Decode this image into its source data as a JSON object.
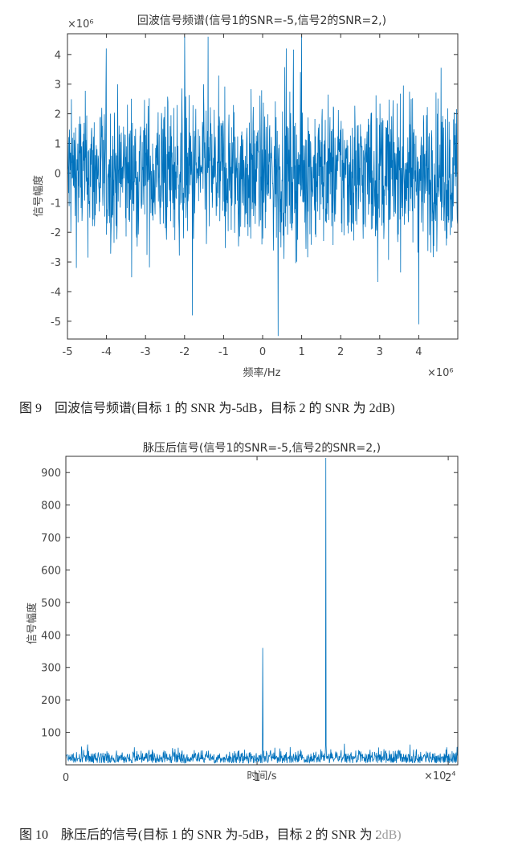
{
  "chart_data": [
    {
      "type": "line",
      "title": "回波信号频谱(信号1的SNR=-5,信号2的SNR=2,)",
      "xlabel": "频率/Hz",
      "ylabel": "信号幅度",
      "x_exponent": "×10⁶",
      "y_exponent": "×10⁶",
      "xlim": [
        -5,
        5
      ],
      "ylim": [
        -5.6,
        4.7
      ],
      "xticks": [
        "-5",
        "-4",
        "-3",
        "-2",
        "-1",
        "0",
        "1",
        "2",
        "3",
        "4"
      ],
      "yticks": [
        "4",
        "3",
        "2",
        "1",
        "0",
        "-1",
        "-2",
        "-3",
        "-4",
        "-5"
      ],
      "ytick_values": [
        4,
        3,
        2,
        1,
        0,
        -1,
        -2,
        -3,
        -4,
        -5
      ],
      "xtick_values": [
        -5,
        -4,
        -3,
        -2,
        -1,
        0,
        1,
        2,
        3,
        4
      ],
      "grid": false,
      "line_color": "#0072BD",
      "series": [
        {
          "description": "dense noise-like spectrum, mostly within ±2.5, peaks up to about ±4.8",
          "x_range": [
            -5,
            5
          ],
          "n_points": 1400,
          "typical_amplitude": 2.2,
          "extremes": [
            {
              "x": -2.0,
              "y": 4.6
            },
            {
              "x": -1.4,
              "y": 4.6
            },
            {
              "x": 1.0,
              "y": 4.6
            },
            {
              "x": -1.8,
              "y": -4.8
            },
            {
              "x": 0.4,
              "y": -5.5
            },
            {
              "x": 4.0,
              "y": -5.1
            }
          ]
        }
      ]
    },
    {
      "type": "line",
      "title": "脉压后信号(信号1的SNR=-5,信号2的SNR=2,)",
      "xlabel": "时间/s",
      "ylabel": "信号幅度",
      "x_exponent": "×10⁻⁴",
      "xlim": [
        0,
        2.05
      ],
      "ylim": [
        0,
        950
      ],
      "xticks": [
        "0",
        "1",
        "2"
      ],
      "xtick_values": [
        0,
        1,
        2
      ],
      "yticks": [
        "900",
        "800",
        "700",
        "600",
        "500",
        "400",
        "300",
        "200",
        "100"
      ],
      "ytick_values": [
        900,
        800,
        700,
        600,
        500,
        400,
        300,
        200,
        100
      ],
      "grid": false,
      "line_color": "#0072BD",
      "series": [
        {
          "description": "noise floor roughly 5–50 with two compressed-pulse peaks",
          "noise_floor": [
            5,
            50
          ],
          "peaks": [
            {
              "x": 1.03,
              "y": 360
            },
            {
              "x": 1.36,
              "y": 945
            }
          ]
        }
      ]
    }
  ],
  "captions": {
    "fig9": "图 9　回波信号频谱(目标 1 的 SNR 为-5dB，目标 2 的 SNR 为 2dB)",
    "fig10": "图 10　脉压后的信号(目标 1 的 SNR 为-5dB，目标 2 的 SNR 为 2dB)"
  }
}
